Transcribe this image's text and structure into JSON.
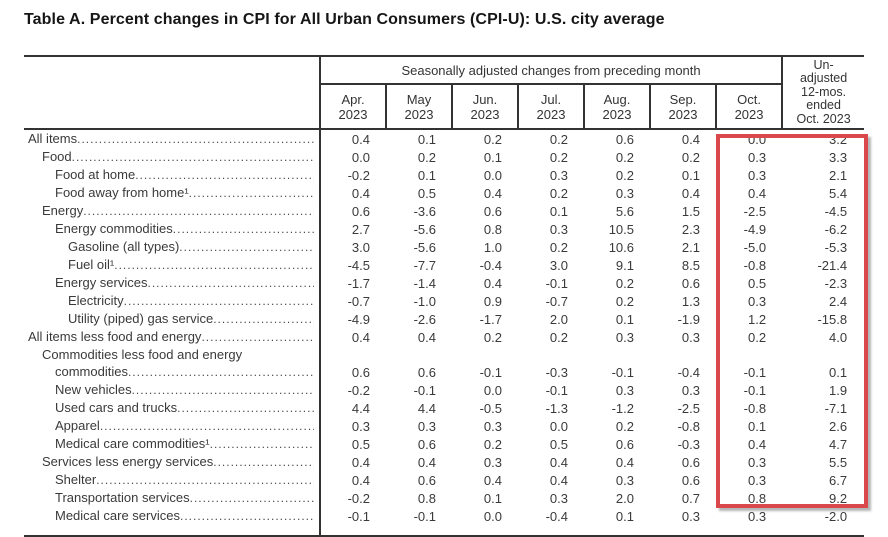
{
  "title": "Table A. Percent changes in CPI for All Urban Consumers (CPI-U): U.S. city average",
  "highlight_color": "#d9494b",
  "table": {
    "group_header": "Seasonally adjusted changes from preceding month",
    "unadjusted_header": "Un-\nadjusted\n12-mos.\nended\nOct. 2023",
    "month_columns": [
      "Apr.\n2023",
      "May\n2023",
      "Jun.\n2023",
      "Jul.\n2023",
      "Aug.\n2023",
      "Sep.\n2023",
      "Oct.\n2023"
    ],
    "rows": [
      {
        "label": "All items",
        "indent": 0,
        "values": [
          "0.4",
          "0.1",
          "0.2",
          "0.2",
          "0.6",
          "0.4",
          "0.0",
          "3.2"
        ]
      },
      {
        "label": "Food",
        "indent": 1,
        "values": [
          "0.0",
          "0.2",
          "0.1",
          "0.2",
          "0.2",
          "0.2",
          "0.3",
          "3.3"
        ]
      },
      {
        "label": "Food at home",
        "indent": 2,
        "values": [
          "-0.2",
          "0.1",
          "0.0",
          "0.3",
          "0.2",
          "0.1",
          "0.3",
          "2.1"
        ]
      },
      {
        "label": "Food away from home¹",
        "indent": 2,
        "values": [
          "0.4",
          "0.5",
          "0.4",
          "0.2",
          "0.3",
          "0.4",
          "0.4",
          "5.4"
        ]
      },
      {
        "label": "Energy",
        "indent": 1,
        "values": [
          "0.6",
          "-3.6",
          "0.6",
          "0.1",
          "5.6",
          "1.5",
          "-2.5",
          "-4.5"
        ]
      },
      {
        "label": "Energy commodities",
        "indent": 2,
        "values": [
          "2.7",
          "-5.6",
          "0.8",
          "0.3",
          "10.5",
          "2.3",
          "-4.9",
          "-6.2"
        ]
      },
      {
        "label": "Gasoline (all types)",
        "indent": 3,
        "values": [
          "3.0",
          "-5.6",
          "1.0",
          "0.2",
          "10.6",
          "2.1",
          "-5.0",
          "-5.3"
        ]
      },
      {
        "label": "Fuel oil¹",
        "indent": 3,
        "values": [
          "-4.5",
          "-7.7",
          "-0.4",
          "3.0",
          "9.1",
          "8.5",
          "-0.8",
          "-21.4"
        ]
      },
      {
        "label": "Energy services",
        "indent": 2,
        "values": [
          "-1.7",
          "-1.4",
          "0.4",
          "-0.1",
          "0.2",
          "0.6",
          "0.5",
          "-2.3"
        ]
      },
      {
        "label": "Electricity",
        "indent": 3,
        "values": [
          "-0.7",
          "-1.0",
          "0.9",
          "-0.7",
          "0.2",
          "1.3",
          "0.3",
          "2.4"
        ]
      },
      {
        "label": "Utility (piped) gas service",
        "indent": 3,
        "values": [
          "-4.9",
          "-2.6",
          "-1.7",
          "2.0",
          "0.1",
          "-1.9",
          "1.2",
          "-15.8"
        ]
      },
      {
        "label": "All items less food and energy",
        "indent": 0,
        "values": [
          "0.4",
          "0.4",
          "0.2",
          "0.2",
          "0.3",
          "0.3",
          "0.2",
          "4.0"
        ]
      },
      {
        "label": "Commodities less food and energy",
        "label2": "commodities",
        "indent": 1,
        "values": [
          "0.6",
          "0.6",
          "-0.1",
          "-0.3",
          "-0.1",
          "-0.4",
          "-0.1",
          "0.1"
        ]
      },
      {
        "label": "New vehicles",
        "indent": 2,
        "values": [
          "-0.2",
          "-0.1",
          "0.0",
          "-0.1",
          "0.3",
          "0.3",
          "-0.1",
          "1.9"
        ]
      },
      {
        "label": "Used cars and trucks",
        "indent": 2,
        "values": [
          "4.4",
          "4.4",
          "-0.5",
          "-1.3",
          "-1.2",
          "-2.5",
          "-0.8",
          "-7.1"
        ]
      },
      {
        "label": "Apparel",
        "indent": 2,
        "values": [
          "0.3",
          "0.3",
          "0.3",
          "0.0",
          "0.2",
          "-0.8",
          "0.1",
          "2.6"
        ]
      },
      {
        "label": "Medical care commodities¹",
        "indent": 2,
        "values": [
          "0.5",
          "0.6",
          "0.2",
          "0.5",
          "0.6",
          "-0.3",
          "0.4",
          "4.7"
        ]
      },
      {
        "label": "Services less energy services",
        "indent": 1,
        "values": [
          "0.4",
          "0.4",
          "0.3",
          "0.4",
          "0.4",
          "0.6",
          "0.3",
          "5.5"
        ]
      },
      {
        "label": "Shelter",
        "indent": 2,
        "values": [
          "0.4",
          "0.6",
          "0.4",
          "0.4",
          "0.3",
          "0.6",
          "0.3",
          "6.7"
        ]
      },
      {
        "label": "Transportation services",
        "indent": 2,
        "values": [
          "-0.2",
          "0.8",
          "0.1",
          "0.3",
          "2.0",
          "0.7",
          "0.8",
          "9.2"
        ]
      },
      {
        "label": "Medical care services",
        "indent": 2,
        "values": [
          "-0.1",
          "-0.1",
          "0.0",
          "-0.4",
          "0.1",
          "0.3",
          "0.3",
          "-2.0"
        ]
      }
    ]
  }
}
